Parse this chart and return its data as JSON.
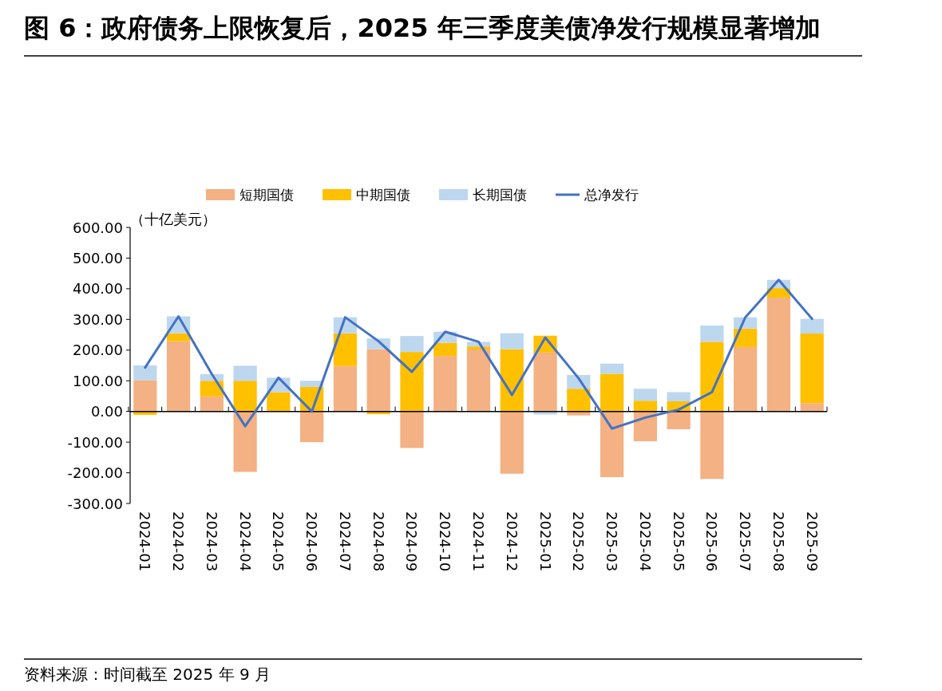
{
  "chart_data": {
    "type": "bar",
    "stacked": true,
    "title": "图 6：政府债务上限恢复后，2025 年三季度美债净发行规模显著增加",
    "ylabel": "（十亿美元）",
    "annotations": [
      "资料来源：时间截至 2025 年 9 月"
    ],
    "categories": [
      "2024-01",
      "2024-02",
      "2024-03",
      "2024-04",
      "2024-05",
      "2024-06",
      "2024-07",
      "2024-08",
      "2024-09",
      "2024-10",
      "2024-11",
      "2024-12",
      "2025-01",
      "2025-02",
      "2025-03",
      "2025-04",
      "2025-05",
      "2025-06",
      "2025-07",
      "2025-08",
      "2025-09"
    ],
    "series": [
      {
        "name": "短期国债",
        "color": "#f4b183",
        "values": [
          102,
          229,
          49,
          -197,
          0,
          -100,
          148,
          203,
          -119,
          181,
          202,
          -203,
          192,
          -13,
          -214,
          -97,
          -58,
          -220,
          210,
          371,
          27
        ]
      },
      {
        "name": "中期国债",
        "color": "#ffc000",
        "values": [
          -11,
          26,
          51,
          100,
          63,
          80,
          107,
          -9,
          194,
          43,
          10,
          203,
          55,
          74,
          123,
          35,
          33,
          227,
          60,
          31,
          227
        ]
      },
      {
        "name": "长期国债",
        "color": "#bdd7ee",
        "values": [
          48,
          55,
          22,
          49,
          47,
          20,
          52,
          35,
          52,
          36,
          15,
          52,
          -10,
          45,
          33,
          39,
          30,
          53,
          37,
          27,
          48
        ]
      },
      {
        "name": "总净发行",
        "type": "line",
        "color": "#4472c4",
        "values": [
          143,
          310,
          122,
          -48,
          110,
          0,
          307,
          229,
          129,
          260,
          227,
          54,
          241,
          108,
          -56,
          -20,
          6,
          63,
          307,
          429,
          302
        ]
      }
    ],
    "ylim": [
      -300,
      600
    ],
    "yticks": [
      {
        "value": -300,
        "label": "-300.00"
      },
      {
        "value": -200,
        "label": "-200.00"
      },
      {
        "value": -100,
        "label": "-100.00"
      },
      {
        "value": 0,
        "label": "0.00"
      },
      {
        "value": 100,
        "label": "100.00"
      },
      {
        "value": 200,
        "label": "200.00"
      },
      {
        "value": 300,
        "label": "300.00"
      },
      {
        "value": 400,
        "label": "400.00"
      },
      {
        "value": 500,
        "label": "500.00"
      },
      {
        "value": 600,
        "label": "600.00"
      }
    ],
    "legend": "top"
  }
}
